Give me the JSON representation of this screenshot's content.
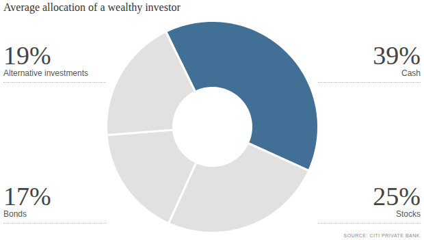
{
  "chart_data": {
    "type": "pie",
    "title": "Average allocation of a wealthy investor",
    "categories": [
      "Cash",
      "Stocks",
      "Bonds",
      "Alternative investments"
    ],
    "values": [
      39,
      25,
      17,
      19
    ],
    "value_labels": [
      "39%",
      "25%",
      "17%",
      "19%"
    ],
    "colors": [
      "#416f95",
      "#e1e1e1",
      "#e1e1e1",
      "#e1e1e1"
    ],
    "data_labels": true,
    "tick_labels": false,
    "caption": "SOURCE: CITI PRIVATE BANK"
  }
}
